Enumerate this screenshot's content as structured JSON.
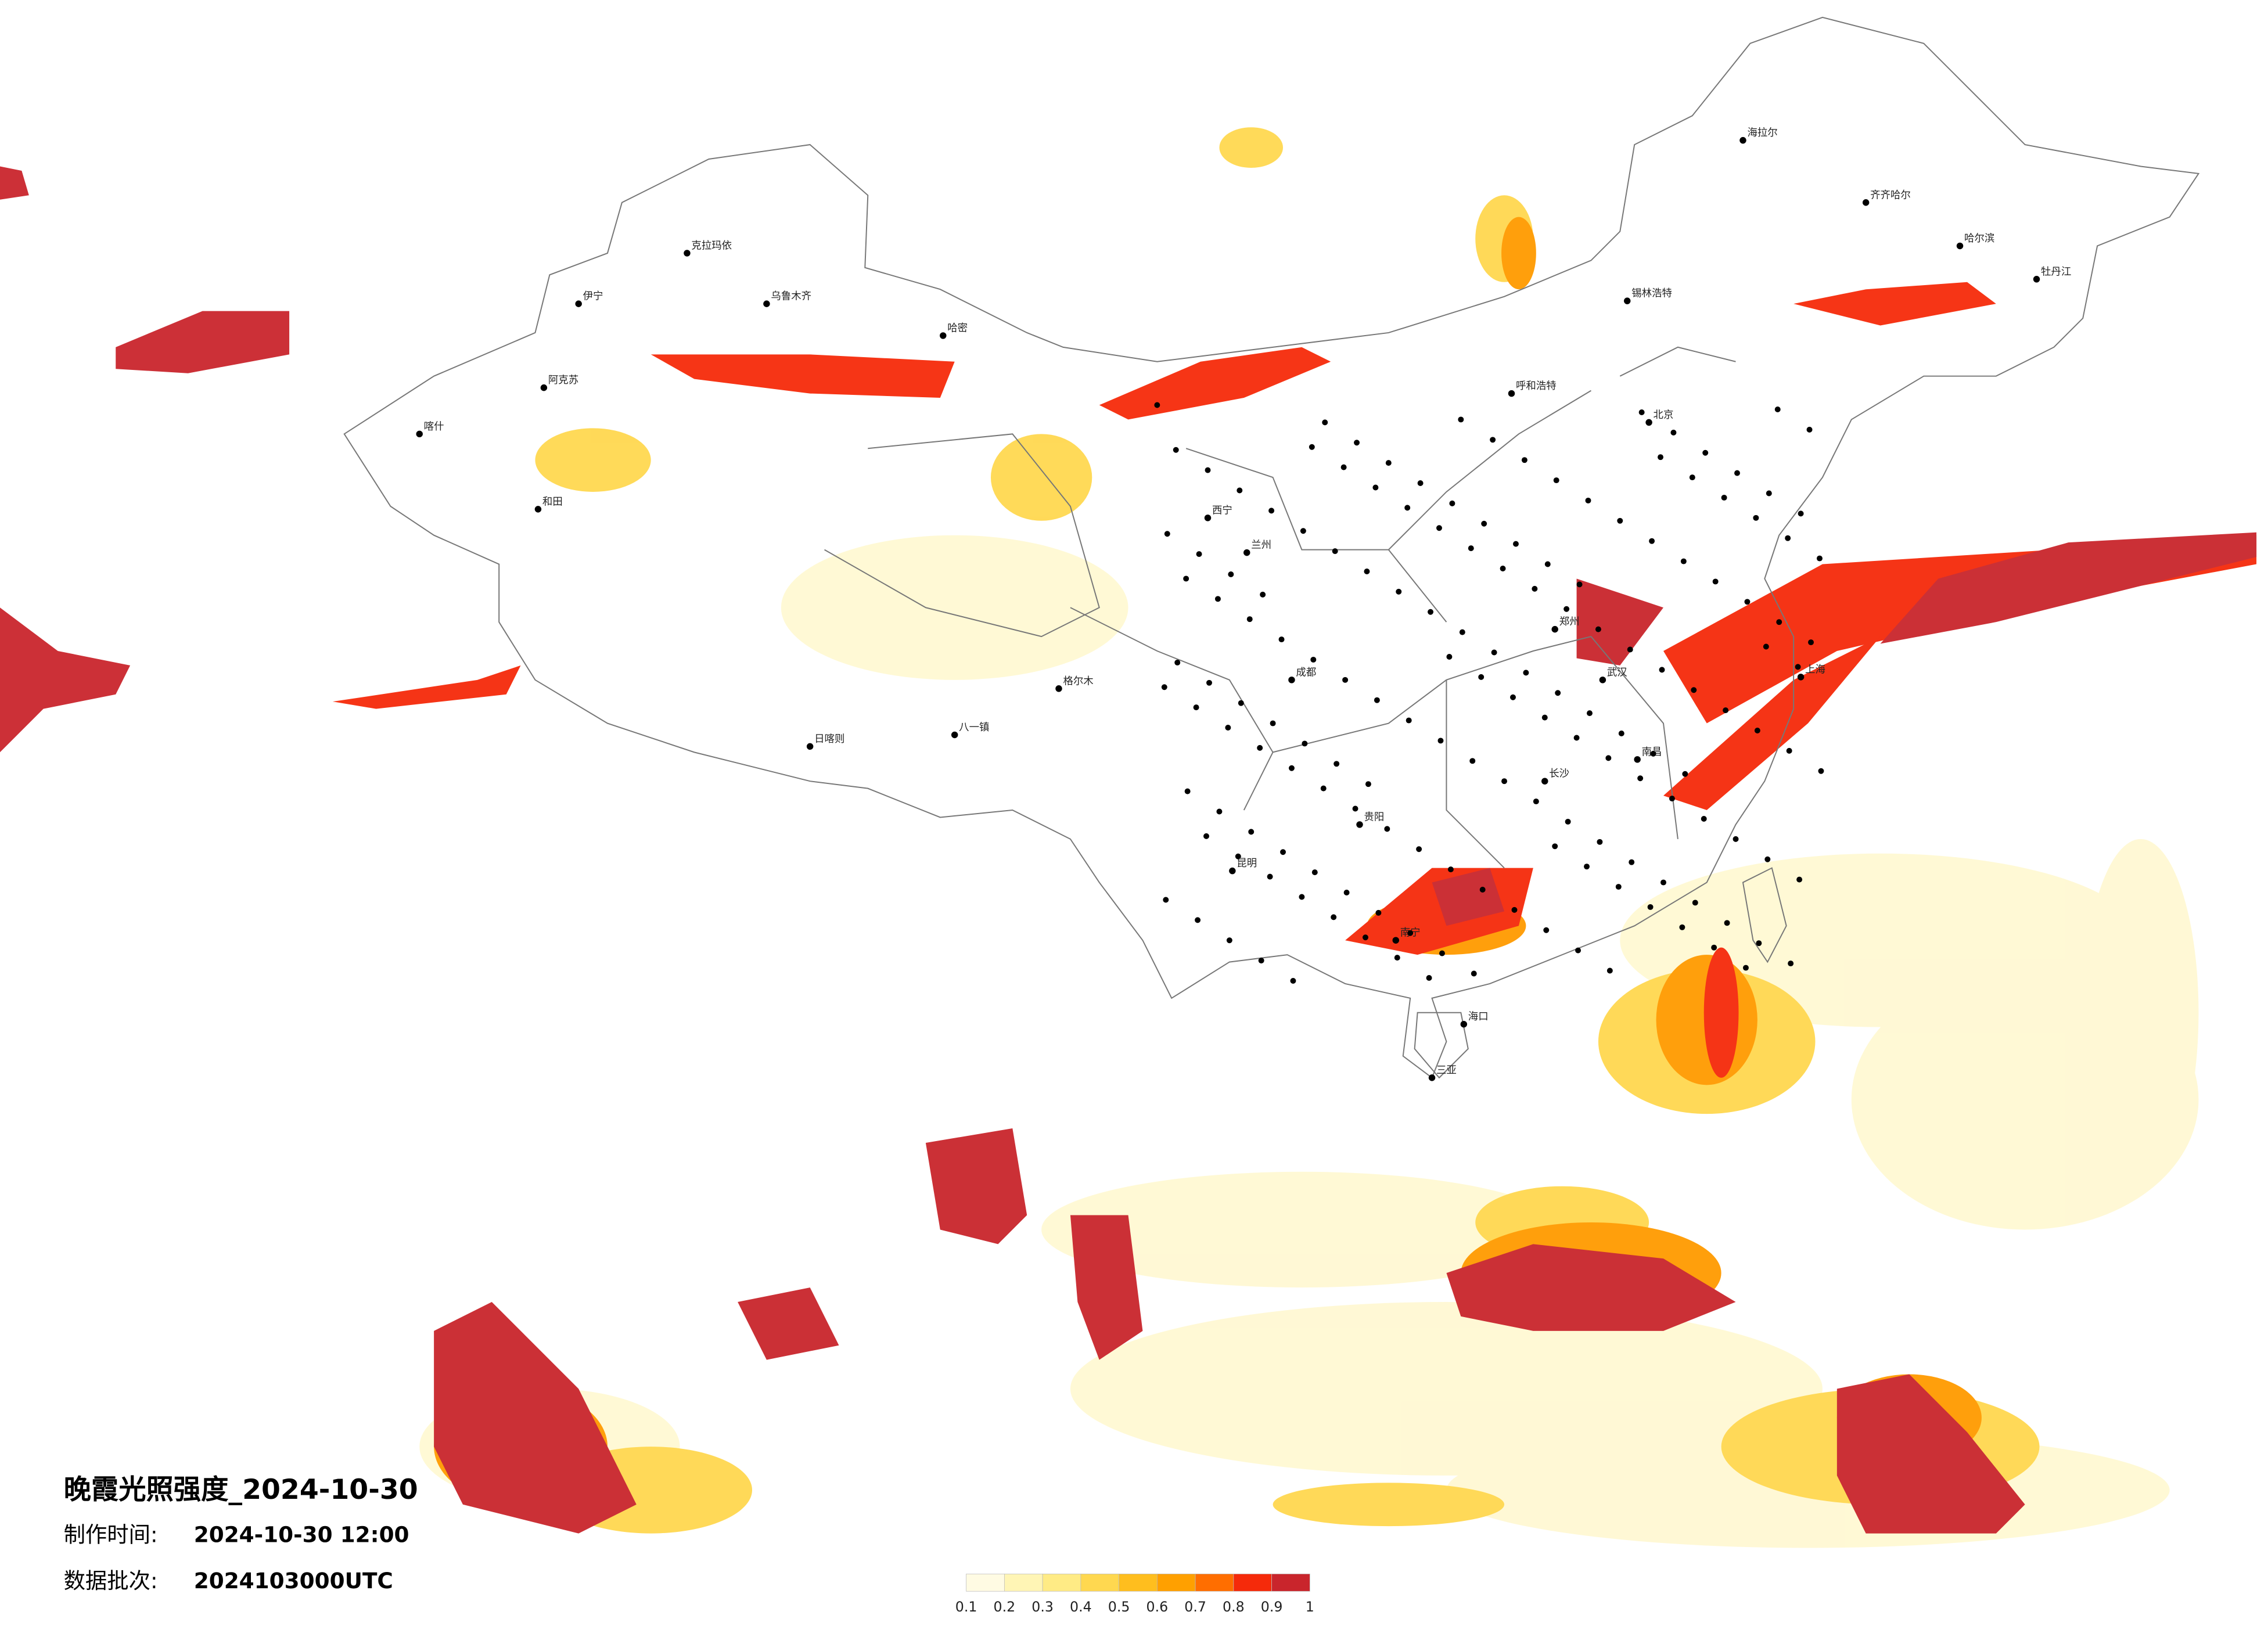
{
  "title": "晚霞光照强度_2024-10-30",
  "made_time": {
    "label": "制作时间:",
    "value": "2024-10-30 12:00"
  },
  "batch": {
    "label": "数据批次:",
    "value": "2024103000UTC"
  },
  "colorbar": {
    "ticks": [
      0.1,
      0.2,
      0.3,
      0.4,
      0.5,
      0.6,
      0.7,
      0.8,
      0.9,
      1
    ],
    "colors": [
      "#fffbe3",
      "#fff5b5",
      "#ffeb85",
      "#ffd850",
      "#ffbe1e",
      "#ffa000",
      "#ff6e00",
      "#f52a0a",
      "#c9252c"
    ]
  },
  "cities": [
    "克拉玛依",
    "乌鲁木齐",
    "哈密",
    "伊宁",
    "阿克苏",
    "喀什",
    "和田",
    "日喀则",
    "八一镇",
    "格尔木",
    "西宁",
    "兰州",
    "呼和浩特",
    "海拉尔",
    "齐齐哈尔",
    "哈尔滨",
    "北京",
    "郑州",
    "武汉",
    "长沙",
    "南昌",
    "上海",
    "成都",
    "贵阳",
    "昆明",
    "南宁",
    "海口",
    "三亚",
    "锡林浩特",
    "牡丹江"
  ]
}
